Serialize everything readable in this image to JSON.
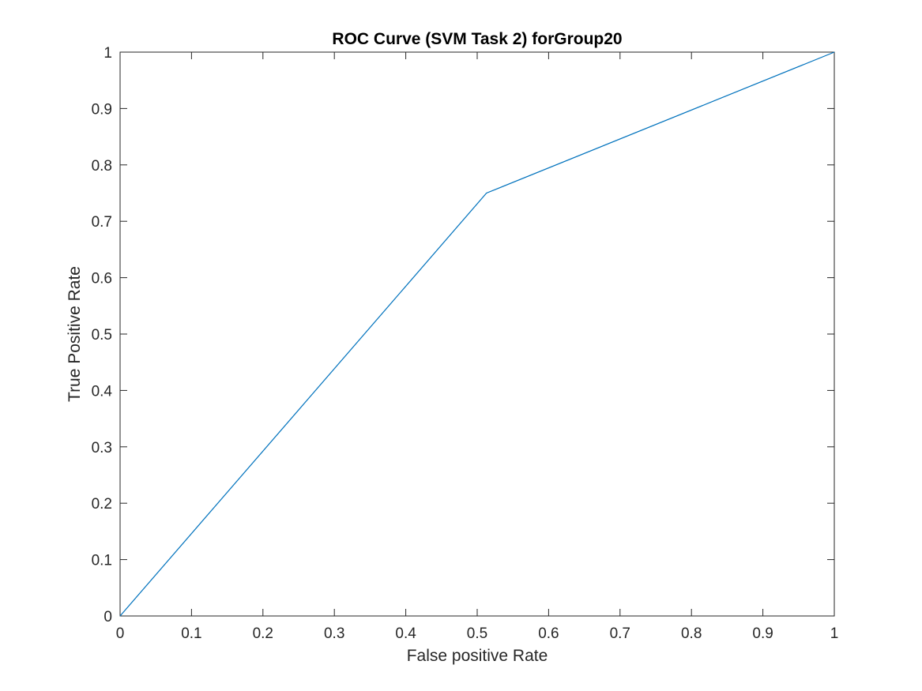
{
  "chart_data": {
    "type": "line",
    "title": "ROC Curve (SVM Task 2) forGroup20",
    "xlabel": "False positive Rate",
    "ylabel": "True Positive Rate",
    "xlim": [
      0,
      1
    ],
    "ylim": [
      0,
      1
    ],
    "xticks": [
      "0",
      "0.1",
      "0.2",
      "0.3",
      "0.4",
      "0.5",
      "0.6",
      "0.7",
      "0.8",
      "0.9",
      "1"
    ],
    "yticks": [
      "0",
      "0.1",
      "0.2",
      "0.3",
      "0.4",
      "0.5",
      "0.6",
      "0.7",
      "0.8",
      "0.9",
      "1"
    ],
    "grid": false,
    "series": [
      {
        "x": [
          0,
          0.513,
          1
        ],
        "y": [
          0,
          0.75,
          1
        ],
        "color": "#0072bd"
      }
    ]
  }
}
